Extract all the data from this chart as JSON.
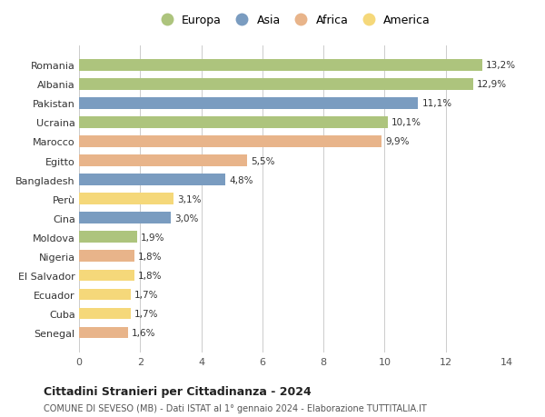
{
  "countries": [
    "Romania",
    "Albania",
    "Pakistan",
    "Ucraina",
    "Marocco",
    "Egitto",
    "Bangladesh",
    "Perù",
    "Cina",
    "Moldova",
    "Nigeria",
    "El Salvador",
    "Ecuador",
    "Cuba",
    "Senegal"
  ],
  "values": [
    13.2,
    12.9,
    11.1,
    10.1,
    9.9,
    5.5,
    4.8,
    3.1,
    3.0,
    1.9,
    1.8,
    1.8,
    1.7,
    1.7,
    1.6
  ],
  "labels": [
    "13,2%",
    "12,9%",
    "11,1%",
    "10,1%",
    "9,9%",
    "5,5%",
    "4,8%",
    "3,1%",
    "3,0%",
    "1,9%",
    "1,8%",
    "1,8%",
    "1,7%",
    "1,7%",
    "1,6%"
  ],
  "continents": [
    "Europa",
    "Europa",
    "Asia",
    "Europa",
    "Africa",
    "Africa",
    "Asia",
    "America",
    "Asia",
    "Europa",
    "Africa",
    "America",
    "America",
    "America",
    "Africa"
  ],
  "colors": {
    "Europa": "#adc47d",
    "Asia": "#7a9cc0",
    "Africa": "#e8b48a",
    "America": "#f5d87a"
  },
  "legend_order": [
    "Europa",
    "Asia",
    "Africa",
    "America"
  ],
  "xlim": [
    0,
    14
  ],
  "xticks": [
    0,
    2,
    4,
    6,
    8,
    10,
    12,
    14
  ],
  "title": "Cittadini Stranieri per Cittadinanza - 2024",
  "subtitle": "COMUNE DI SEVESO (MB) - Dati ISTAT al 1° gennaio 2024 - Elaborazione TUTTITALIA.IT",
  "background_color": "#ffffff",
  "grid_color": "#cccccc"
}
